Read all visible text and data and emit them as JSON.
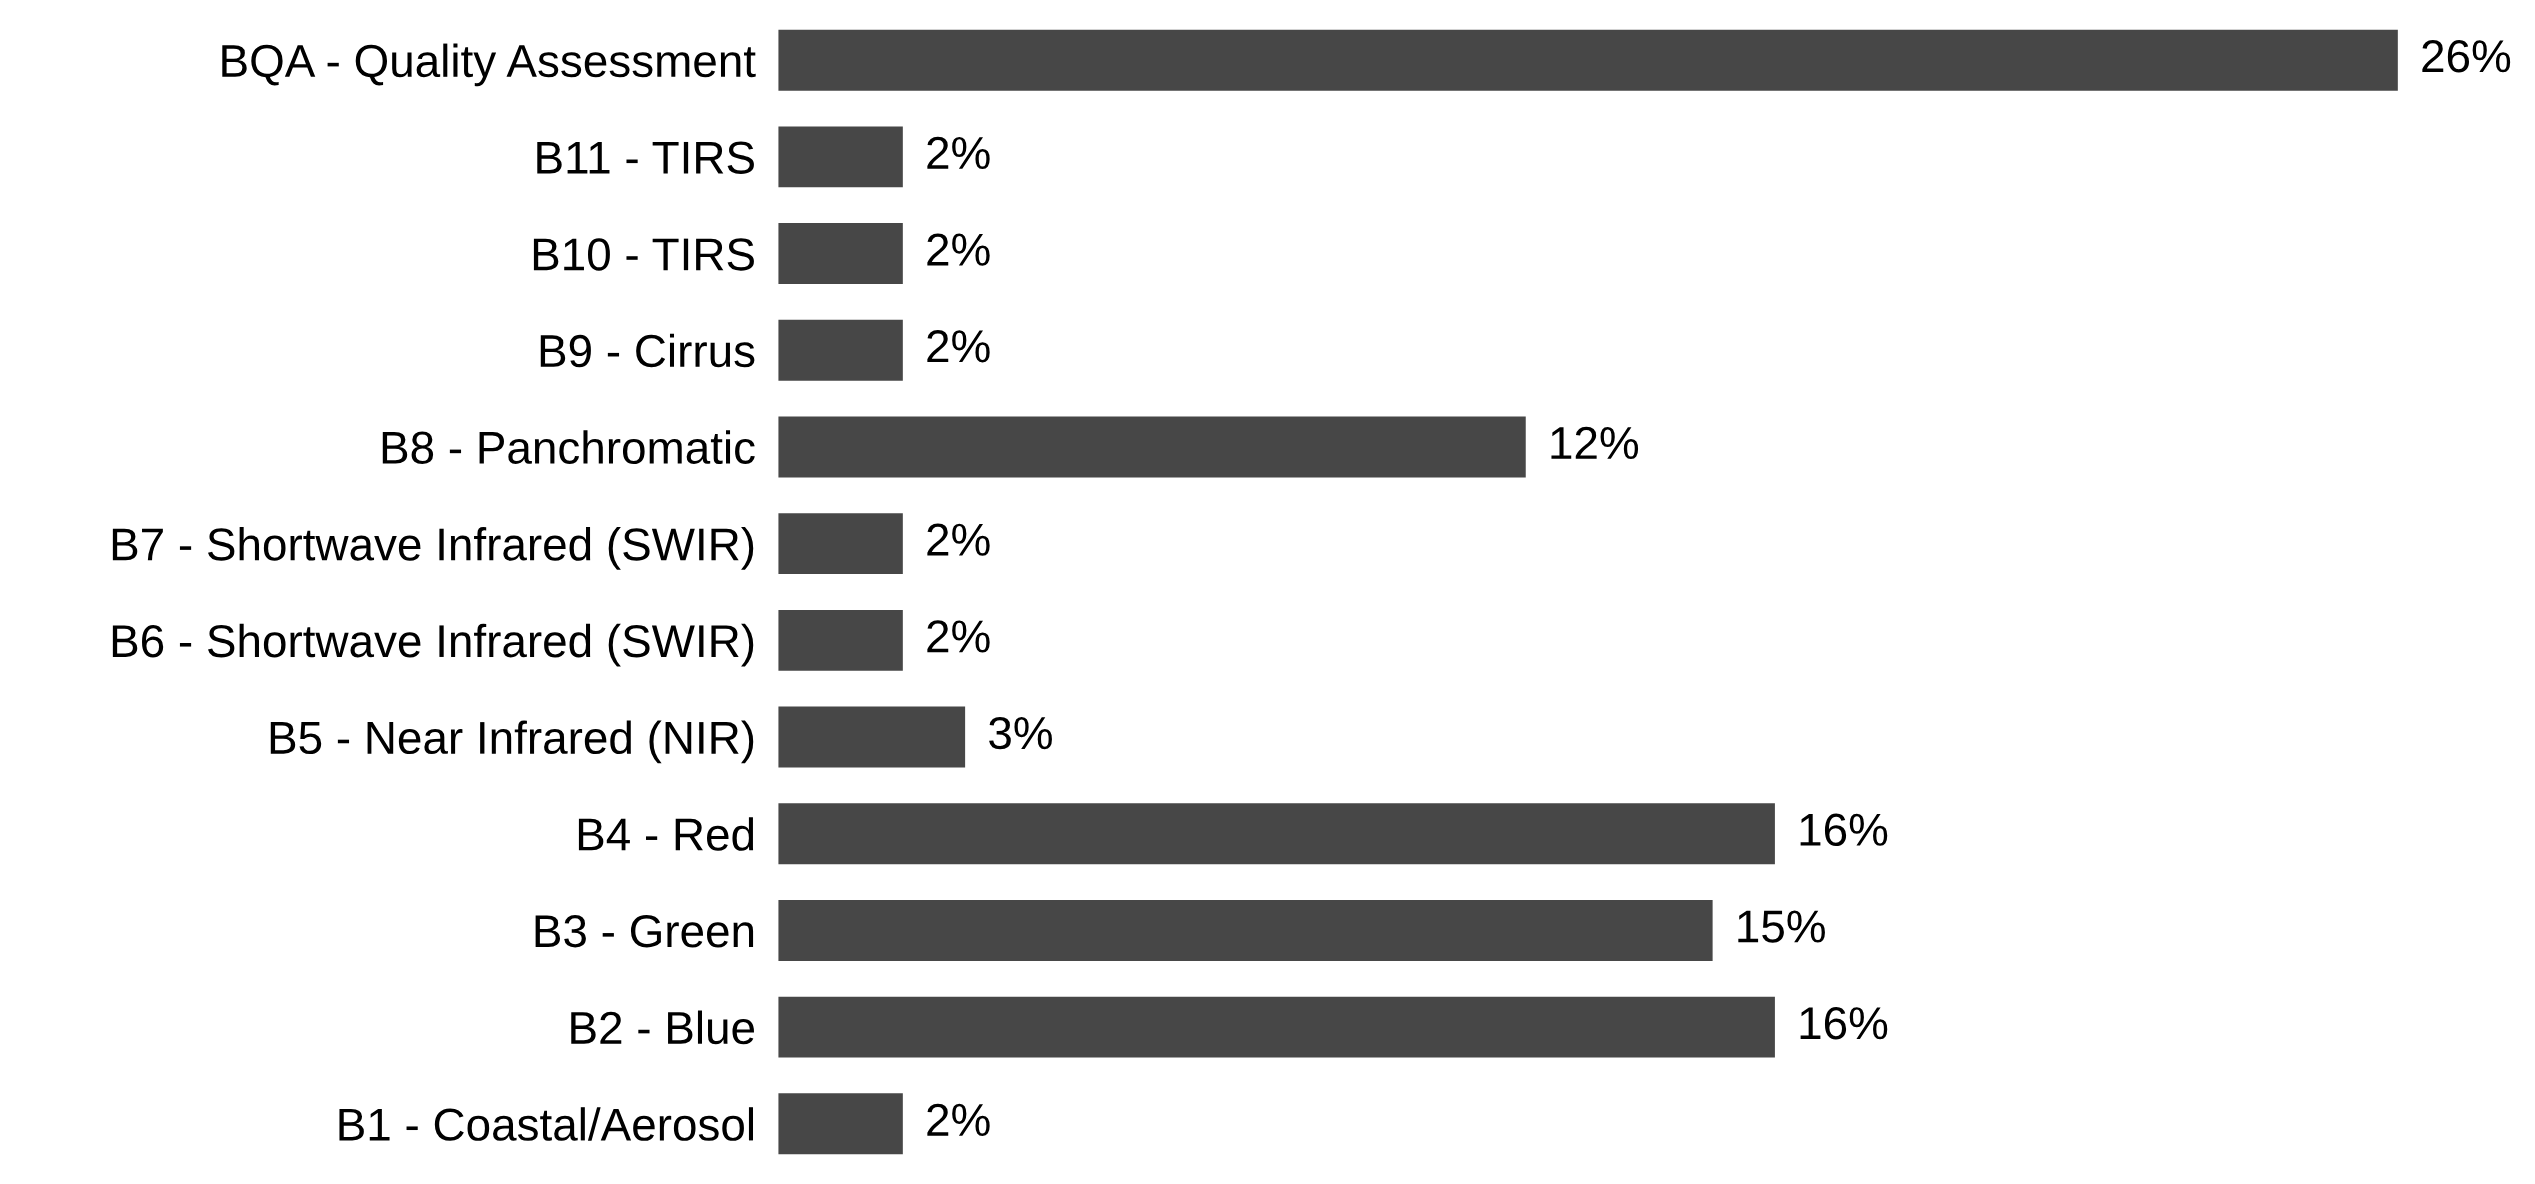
{
  "chart_data": {
    "type": "bar",
    "orientation": "horizontal",
    "categories": [
      "BQA - Quality Assessment",
      "B11 - TIRS",
      "B10 - TIRS",
      "B9 - Cirrus",
      "B8 - Panchromatic",
      "B7 - Shortwave Infrared (SWIR)",
      "B6 - Shortwave Infrared (SWIR)",
      "B5 - Near Infrared (NIR)",
      "B4 - Red",
      "B3 - Green",
      "B2 - Blue",
      "B1 - Coastal/Aerosol"
    ],
    "values": [
      26,
      2,
      2,
      2,
      12,
      2,
      2,
      3,
      16,
      15,
      16,
      2
    ],
    "value_labels": [
      "26%",
      "2%",
      "2%",
      "2%",
      "12%",
      "2%",
      "2%",
      "3%",
      "16%",
      "15%",
      "16%",
      "2%"
    ],
    "color": "#474747",
    "grid": false,
    "legend": false,
    "tick_labels": "y"
  }
}
